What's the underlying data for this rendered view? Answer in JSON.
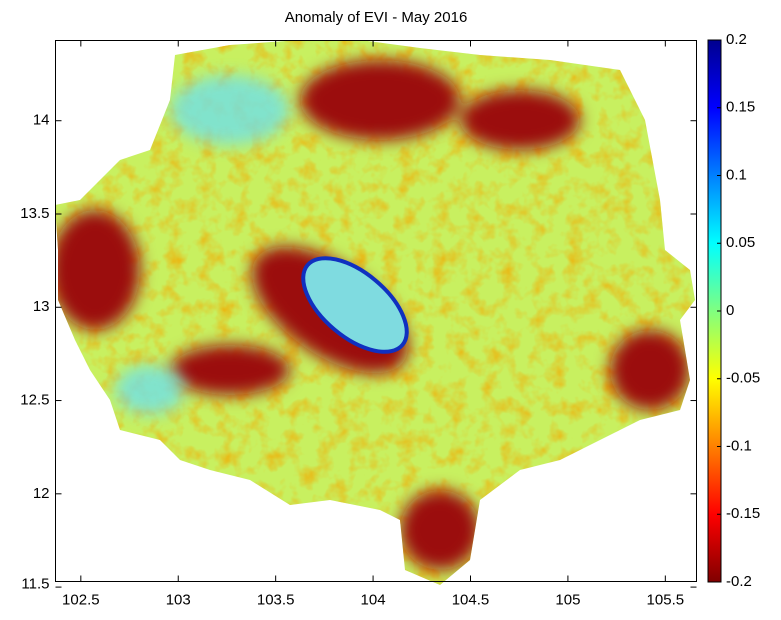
{
  "chart_data": {
    "type": "raster-map",
    "title": "Anomaly of EVI - May 2016",
    "xlim": [
      102.37,
      105.66
    ],
    "xticks": [
      102.5,
      103,
      103.5,
      104,
      104.5,
      105,
      105.5
    ],
    "ylim": [
      11.53,
      14.43
    ],
    "yticks": [
      11.5,
      12,
      12.5,
      13,
      13.5,
      14
    ],
    "colorbar": {
      "lim": [
        -0.2,
        0.2
      ],
      "ticks": [
        -0.2,
        -0.15,
        -0.1,
        -0.05,
        0,
        0.05,
        0.1,
        0.15,
        0.2
      ],
      "colormap": [
        "#800000",
        "#ff0000",
        "#ff8000",
        "#ffff00",
        "#80ff80",
        "#00ffff",
        "#0080ff",
        "#0000ff",
        "#00008f"
      ]
    }
  }
}
